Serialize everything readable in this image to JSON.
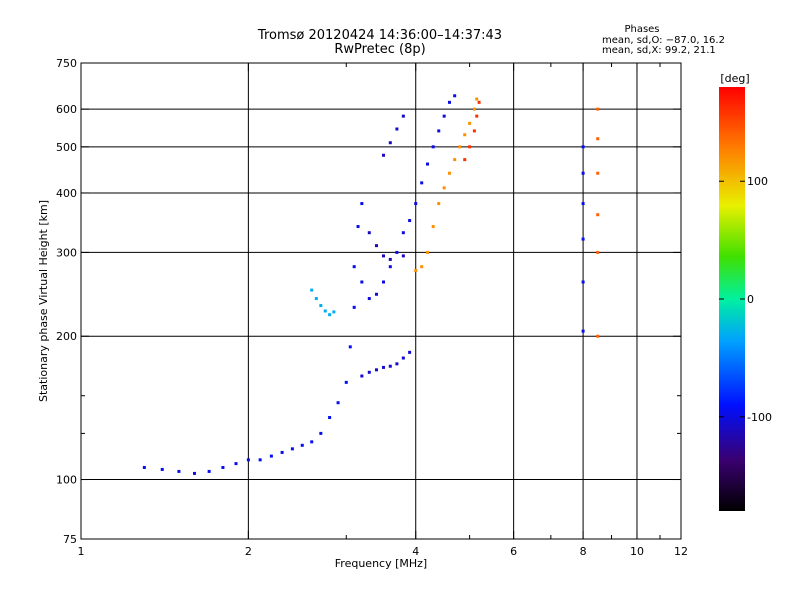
{
  "chart_data": {
    "type": "scatter",
    "title": "Tromsø 20120424 14:36:00–14:37:43",
    "subtitle": "RwPretec (8p)",
    "xlabel": "Frequency [MHz]",
    "ylabel": "Stationary phase Virtual Height [km]",
    "x_scale": "log",
    "y_scale": "log",
    "xlim": [
      1,
      12
    ],
    "ylim": [
      75,
      750
    ],
    "x_ticks": [
      1,
      2,
      4,
      6,
      8,
      10,
      12
    ],
    "x_tick_labels": [
      "1",
      "2",
      "4",
      "6",
      "8",
      "10",
      "12"
    ],
    "x_minor_ticks": [
      3,
      5,
      7,
      9,
      11
    ],
    "y_ticks": [
      75,
      100,
      200,
      300,
      400,
      500,
      600,
      750
    ],
    "y_tick_labels": [
      "75",
      "100",
      "200",
      "300",
      "400",
      "500",
      "600",
      "750"
    ],
    "y_minor_ticks": [
      125,
      150
    ],
    "grid_x": [
      2,
      4,
      6,
      8,
      10
    ],
    "grid_y": [
      100,
      200,
      300,
      400,
      500,
      600
    ],
    "grid": true,
    "phases": {
      "heading": "Phases",
      "line_o": "mean, sd,O: −87.0, 16.2",
      "line_x": "mean, sd,X:  99.2, 21.1"
    },
    "colorbar": {
      "label": "[deg]",
      "range": [
        -180,
        180
      ],
      "tick_values": [
        100,
        0,
        -100
      ],
      "tick_labels": [
        "100",
        "0",
        "-100"
      ]
    },
    "traces": [
      {
        "phase_deg": -95,
        "points": [
          [
            1.3,
            106
          ],
          [
            1.4,
            105
          ],
          [
            1.5,
            104
          ],
          [
            1.6,
            103
          ],
          [
            1.7,
            104
          ],
          [
            1.8,
            106
          ],
          [
            1.9,
            108
          ],
          [
            2.0,
            110
          ],
          [
            2.1,
            110
          ],
          [
            2.2,
            112
          ],
          [
            2.3,
            114
          ],
          [
            2.4,
            116
          ],
          [
            2.5,
            118
          ],
          [
            2.6,
            120
          ],
          [
            2.7,
            125
          ],
          [
            2.8,
            135
          ],
          [
            2.9,
            145
          ],
          [
            3.0,
            160
          ],
          [
            3.05,
            190
          ],
          [
            3.1,
            230
          ],
          [
            3.1,
            280
          ],
          [
            3.15,
            340
          ],
          [
            3.2,
            380
          ]
        ]
      },
      {
        "phase_deg": -100,
        "points": [
          [
            3.2,
            260
          ],
          [
            3.3,
            240
          ],
          [
            3.4,
            245
          ],
          [
            3.5,
            260
          ],
          [
            3.6,
            280
          ],
          [
            3.7,
            300
          ],
          [
            3.8,
            330
          ],
          [
            3.9,
            350
          ],
          [
            4.0,
            380
          ],
          [
            4.1,
            420
          ],
          [
            4.2,
            460
          ],
          [
            4.3,
            500
          ],
          [
            4.4,
            540
          ],
          [
            4.5,
            580
          ],
          [
            4.6,
            620
          ],
          [
            4.7,
            640
          ]
        ]
      },
      {
        "phase_deg": -110,
        "points": [
          [
            3.3,
            330
          ],
          [
            3.4,
            310
          ],
          [
            3.5,
            295
          ],
          [
            3.6,
            290
          ],
          [
            3.8,
            295
          ]
        ]
      },
      {
        "phase_deg": -105,
        "points": [
          [
            3.2,
            165
          ],
          [
            3.3,
            168
          ],
          [
            3.4,
            170
          ],
          [
            3.5,
            172
          ],
          [
            3.6,
            173
          ],
          [
            3.7,
            175
          ],
          [
            3.8,
            180
          ],
          [
            3.9,
            185
          ]
        ]
      },
      {
        "phase_deg": -30,
        "points": [
          [
            2.6,
            250
          ],
          [
            2.65,
            240
          ],
          [
            2.7,
            232
          ],
          [
            2.75,
            226
          ],
          [
            2.8,
            222
          ],
          [
            2.85,
            225
          ]
        ]
      },
      {
        "phase_deg": -110,
        "points": [
          [
            3.5,
            480
          ],
          [
            3.6,
            510
          ],
          [
            3.7,
            545
          ],
          [
            3.8,
            580
          ]
        ]
      },
      {
        "phase_deg": 120,
        "points": [
          [
            4.0,
            275
          ],
          [
            4.1,
            280
          ],
          [
            4.2,
            300
          ],
          [
            4.3,
            340
          ],
          [
            4.4,
            380
          ],
          [
            4.5,
            410
          ],
          [
            4.6,
            440
          ],
          [
            4.7,
            470
          ],
          [
            4.8,
            500
          ],
          [
            4.9,
            530
          ],
          [
            5.0,
            560
          ],
          [
            5.1,
            600
          ],
          [
            5.15,
            630
          ]
        ]
      },
      {
        "phase_deg": 160,
        "points": [
          [
            4.9,
            470
          ],
          [
            5.0,
            500
          ],
          [
            5.1,
            540
          ],
          [
            5.15,
            580
          ],
          [
            5.2,
            620
          ]
        ]
      },
      {
        "phase_deg": -95,
        "points": [
          [
            8.0,
            500
          ],
          [
            8.0,
            440
          ],
          [
            8.0,
            380
          ],
          [
            8.0,
            320
          ],
          [
            8.0,
            260
          ],
          [
            8.0,
            205
          ]
        ]
      },
      {
        "phase_deg": 140,
        "points": [
          [
            8.5,
            600
          ],
          [
            8.5,
            520
          ],
          [
            8.5,
            440
          ],
          [
            8.5,
            360
          ],
          [
            8.5,
            300
          ],
          [
            8.5,
            200
          ]
        ]
      }
    ]
  }
}
